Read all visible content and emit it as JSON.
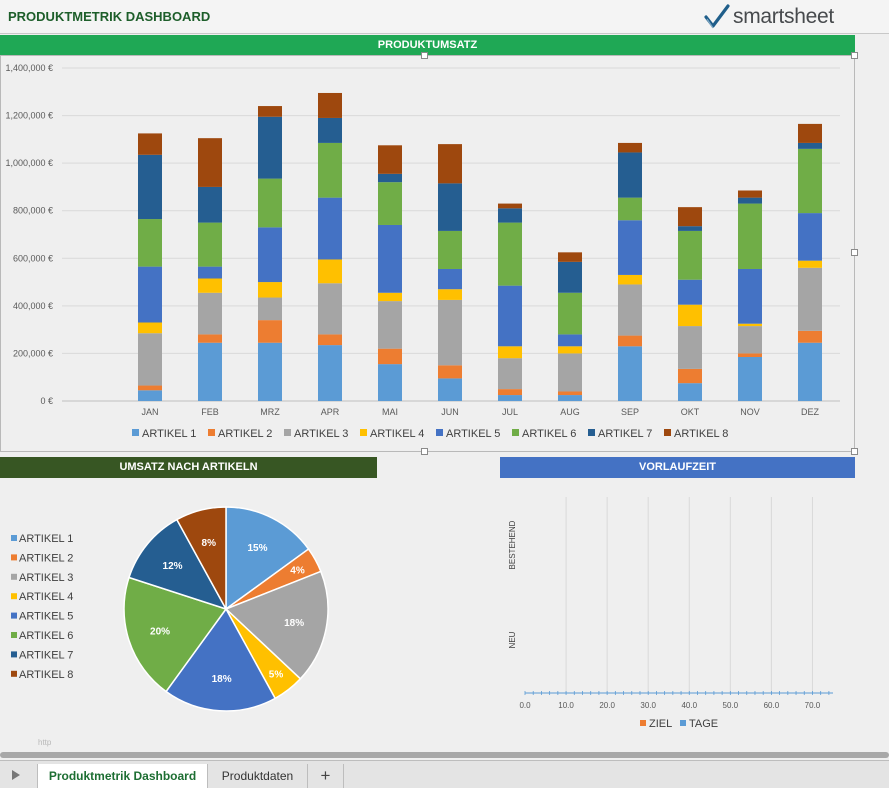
{
  "header": {
    "title": "PRODUKTMETRIK DASHBOARD",
    "logo": "smartsheet"
  },
  "sections": {
    "revenue": {
      "title": "PRODUKTUMSATZ",
      "color": "#1fa855"
    },
    "by_article": {
      "title": "UMSATZ NACH ARTIKELN",
      "color": "#375623"
    },
    "lead_time": {
      "title": "VORLAUFZEIT",
      "color": "#4472c4"
    }
  },
  "colors": [
    "#5b9bd5",
    "#ed7d31",
    "#a5a5a5",
    "#ffc000",
    "#4472c4",
    "#70ad47",
    "#255e91",
    "#9e480e"
  ],
  "chart_data": [
    {
      "type": "bar",
      "stacked": true,
      "title": "PRODUKTUMSATZ",
      "categories": [
        "JAN",
        "FEB",
        "MRZ",
        "APR",
        "MAI",
        "JUN",
        "JUL",
        "AUG",
        "SEP",
        "OKT",
        "NOV",
        "DEZ"
      ],
      "series": [
        {
          "name": "ARTIKEL 1",
          "values": [
            45000,
            245000,
            245000,
            235000,
            155000,
            95000,
            25000,
            25000,
            230000,
            75000,
            185000,
            245000
          ]
        },
        {
          "name": "ARTIKEL 2",
          "values": [
            20000,
            35000,
            95000,
            45000,
            65000,
            55000,
            25000,
            15000,
            45000,
            60000,
            15000,
            50000
          ]
        },
        {
          "name": "ARTIKEL 3",
          "values": [
            220000,
            175000,
            95000,
            215000,
            200000,
            275000,
            130000,
            160000,
            215000,
            180000,
            115000,
            265000
          ]
        },
        {
          "name": "ARTIKEL 4",
          "values": [
            45000,
            60000,
            65000,
            100000,
            35000,
            45000,
            50000,
            30000,
            40000,
            90000,
            10000,
            30000
          ]
        },
        {
          "name": "ARTIKEL 5",
          "values": [
            235000,
            50000,
            230000,
            260000,
            285000,
            85000,
            255000,
            50000,
            230000,
            105000,
            230000,
            200000
          ]
        },
        {
          "name": "ARTIKEL 6",
          "values": [
            200000,
            185000,
            205000,
            230000,
            180000,
            160000,
            265000,
            175000,
            95000,
            205000,
            275000,
            270000
          ]
        },
        {
          "name": "ARTIKEL 7",
          "values": [
            270000,
            150000,
            260000,
            105000,
            35000,
            200000,
            60000,
            130000,
            190000,
            20000,
            25000,
            25000
          ]
        },
        {
          "name": "ARTIKEL 8",
          "values": [
            90000,
            205000,
            45000,
            105000,
            120000,
            165000,
            20000,
            40000,
            40000,
            80000,
            30000,
            80000
          ]
        }
      ],
      "ylim": [
        0,
        1400000
      ],
      "y_ticks": [
        "0 €",
        "200,000 €",
        "400,000 €",
        "600,000 €",
        "800,000 €",
        "1,000,000 €",
        "1,200,000 €",
        "1,400,000 €"
      ],
      "grid": true,
      "legend_position": "bottom"
    },
    {
      "type": "pie",
      "title": "UMSATZ NACH ARTIKELN",
      "labels": [
        "ARTIKEL 1",
        "ARTIKEL 2",
        "ARTIKEL 3",
        "ARTIKEL 4",
        "ARTIKEL 5",
        "ARTIKEL 6",
        "ARTIKEL 7",
        "ARTIKEL 8"
      ],
      "values": [
        15,
        4,
        18,
        5,
        18,
        20,
        12,
        8
      ],
      "data_labels": [
        "15%",
        "4%",
        "18%",
        "5%",
        "18%",
        "20%",
        "12%",
        "8%"
      ],
      "legend_position": "left"
    },
    {
      "type": "bar",
      "orientation": "horizontal",
      "title": "VORLAUFZEIT",
      "categories": [
        "BESTEHEND",
        "NEU"
      ],
      "series": [
        {
          "name": "ZIEL",
          "values": [
            0,
            0
          ]
        },
        {
          "name": "TAGE",
          "values": [
            0,
            0
          ]
        }
      ],
      "x_ticks": [
        "0.0",
        "10.0",
        "20.0",
        "30.0",
        "40.0",
        "50.0",
        "60.0",
        "70.0"
      ],
      "xlim": [
        0,
        75
      ],
      "grid": true,
      "legend_position": "bottom"
    }
  ],
  "tabs": {
    "active": "Produktmetrik Dashboard",
    "inactive": "Produktdaten",
    "add": "+"
  },
  "footer_note": "http"
}
